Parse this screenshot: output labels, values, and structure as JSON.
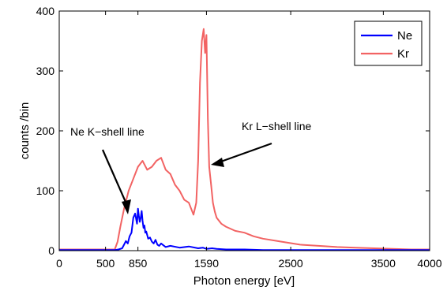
{
  "chart_data": {
    "type": "line",
    "title": "",
    "xlabel": "Photon energy [eV]",
    "ylabel": "counts /bin",
    "xlim": [
      0,
      4000
    ],
    "ylim": [
      0,
      400
    ],
    "xticks": [
      0,
      500,
      850,
      1590,
      2500,
      3500,
      4000
    ],
    "xtick_labels": [
      "0",
      "500",
      "850",
      "1590",
      "2500",
      "3500",
      "4000"
    ],
    "yticks": [
      0,
      100,
      200,
      300,
      400
    ],
    "ytick_labels": [
      "0",
      "100",
      "200",
      "300",
      "400"
    ],
    "grid": false,
    "legend_position": "top-right",
    "series": [
      {
        "name": "Ne",
        "color": "#0000ff",
        "x": [
          0,
          600,
          640,
          680,
          700,
          720,
          740,
          760,
          780,
          800,
          820,
          840,
          850,
          860,
          870,
          880,
          890,
          900,
          910,
          920,
          930,
          940,
          960,
          980,
          1000,
          1020,
          1040,
          1060,
          1080,
          1100,
          1150,
          1200,
          1300,
          1400,
          1500,
          1550,
          1590,
          1650,
          1700,
          1800,
          2000,
          2200,
          2500,
          3000,
          3500,
          4000
        ],
        "y": [
          1,
          1,
          2,
          4,
          10,
          16,
          12,
          24,
          30,
          55,
          62,
          45,
          70,
          58,
          48,
          55,
          66,
          50,
          38,
          42,
          30,
          32,
          20,
          22,
          15,
          12,
          18,
          10,
          8,
          12,
          6,
          8,
          5,
          7,
          4,
          5,
          3,
          4,
          3,
          2,
          2,
          1,
          1,
          1,
          1,
          1
        ]
      },
      {
        "name": "Kr",
        "color": "#f26363",
        "x": [
          0,
          600,
          630,
          660,
          700,
          750,
          800,
          850,
          900,
          950,
          1000,
          1050,
          1100,
          1150,
          1200,
          1250,
          1300,
          1350,
          1400,
          1450,
          1480,
          1500,
          1520,
          1540,
          1560,
          1575,
          1590,
          1605,
          1620,
          1640,
          1660,
          1680,
          1700,
          1750,
          1800,
          1900,
          2000,
          2100,
          2200,
          2400,
          2600,
          2800,
          3000,
          3200,
          3400,
          3600,
          3800,
          4000
        ],
        "y": [
          2,
          2,
          15,
          40,
          70,
          100,
          120,
          140,
          150,
          135,
          140,
          150,
          155,
          135,
          128,
          110,
          100,
          85,
          80,
          60,
          80,
          150,
          280,
          350,
          370,
          330,
          360,
          220,
          140,
          110,
          80,
          65,
          55,
          45,
          40,
          33,
          30,
          24,
          20,
          15,
          10,
          8,
          6,
          5,
          4,
          3,
          2,
          2
        ]
      }
    ],
    "annotations": [
      {
        "text": "Ne K−shell line",
        "x": 830,
        "y": 55
      },
      {
        "text": "Kr L−shell line",
        "x": 1620,
        "y": 145
      }
    ]
  }
}
